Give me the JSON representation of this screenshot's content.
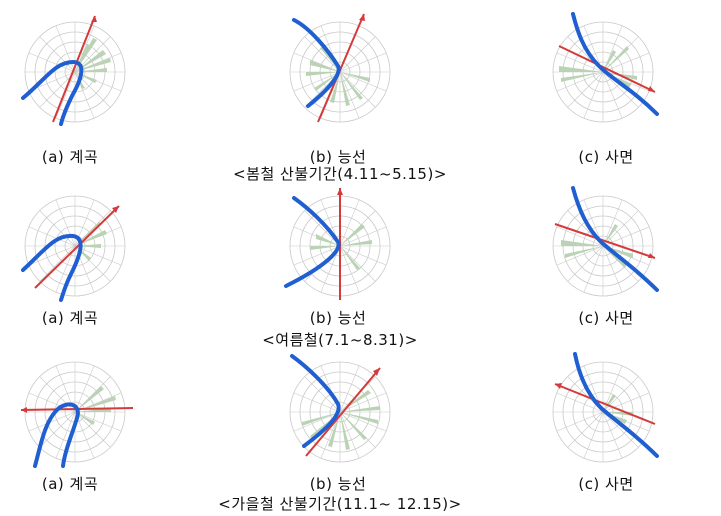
{
  "captions": {
    "a": "(a) 계곡",
    "b": "(b) 능선",
    "c": "(c) 사면"
  },
  "seasons": [
    "<봄철 산불기간(4.11~5.15)>",
    "<여름철(7.1~8.31)>",
    "<가을철 산불기간(11.1~ 12.15)>"
  ],
  "colors": {
    "grid": "#c9c9c9",
    "petal": "#b9d3b4",
    "arrow": "#d43a3a",
    "curve": "#1f5fd1"
  }
}
